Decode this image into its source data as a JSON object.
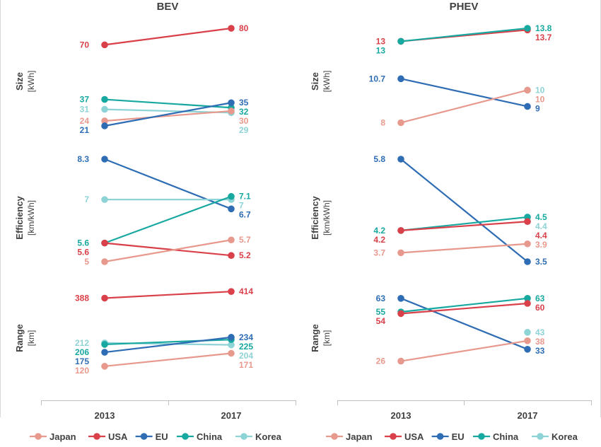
{
  "colors": {
    "Japan": "#e8998d",
    "USA": "#d94049",
    "EU": "#2e6db4",
    "China": "#17a8a0",
    "Korea": "#8ed3d6"
  },
  "legend": [
    "Japan",
    "USA",
    "EU",
    "China",
    "Korea"
  ],
  "chart_data": [
    {
      "type": "line",
      "title": "BEV",
      "categories": [
        "2013",
        "2017"
      ],
      "groups": [
        {
          "metric": "Size",
          "unit": "[kWh]",
          "series": [
            {
              "name": "USA",
              "values": [
                70,
                80
              ],
              "labels": [
                "70",
                "80"
              ]
            },
            {
              "name": "China",
              "values": [
                37,
                32
              ],
              "labels": [
                "37",
                "32"
              ]
            },
            {
              "name": "Korea",
              "values": [
                31,
                29
              ],
              "labels": [
                "31",
                "29"
              ]
            },
            {
              "name": "Japan",
              "values": [
                24,
                30
              ],
              "labels": [
                "24",
                "30"
              ]
            },
            {
              "name": "EU",
              "values": [
                21,
                35
              ],
              "labels": [
                "21",
                "35"
              ]
            }
          ]
        },
        {
          "metric": "Efficiency",
          "unit": "[km/kWh]",
          "series": [
            {
              "name": "EU",
              "values": [
                8.3,
                6.7
              ],
              "labels": [
                "8.3",
                "6.7"
              ]
            },
            {
              "name": "Korea",
              "values": [
                7,
                7
              ],
              "labels": [
                "7",
                "7"
              ]
            },
            {
              "name": "China",
              "values": [
                5.6,
                7.1
              ],
              "labels": [
                "5.6",
                "7.1"
              ]
            },
            {
              "name": "USA",
              "values": [
                5.6,
                5.2
              ],
              "labels": [
                "5.6",
                "5.2"
              ]
            },
            {
              "name": "Japan",
              "values": [
                5,
                5.7
              ],
              "labels": [
                "5",
                "5.7"
              ]
            }
          ]
        },
        {
          "metric": "Range",
          "unit": "[km]",
          "series": [
            {
              "name": "USA",
              "values": [
                388,
                414
              ],
              "labels": [
                "388",
                "414"
              ]
            },
            {
              "name": "Korea",
              "values": [
                212,
                204
              ],
              "labels": [
                "212",
                "204"
              ]
            },
            {
              "name": "China",
              "values": [
                206,
                225
              ],
              "labels": [
                "206",
                "225"
              ]
            },
            {
              "name": "EU",
              "values": [
                175,
                234
              ],
              "labels": [
                "175",
                "234"
              ]
            },
            {
              "name": "Japan",
              "values": [
                120,
                171
              ],
              "labels": [
                "120",
                "171"
              ]
            }
          ]
        }
      ]
    },
    {
      "type": "line",
      "title": "PHEV",
      "categories": [
        "2013",
        "2017"
      ],
      "groups": [
        {
          "metric": "Size",
          "unit": "[kWh]",
          "series": [
            {
              "name": "USA",
              "values": [
                13,
                13.7
              ],
              "labels": [
                "13",
                "13.7"
              ]
            },
            {
              "name": "China",
              "values": [
                13,
                13.8
              ],
              "labels": [
                "13",
                "13.8"
              ]
            },
            {
              "name": "EU",
              "values": [
                10.7,
                9
              ],
              "labels": [
                "10.7",
                "9"
              ]
            },
            {
              "name": "Korea",
              "values": [
                null,
                10
              ],
              "labels": [
                "",
                "10"
              ]
            },
            {
              "name": "Japan",
              "values": [
                8,
                10
              ],
              "labels": [
                "8",
                "10"
              ]
            }
          ]
        },
        {
          "metric": "Efficiency",
          "unit": "[km/kWh]",
          "series": [
            {
              "name": "EU",
              "values": [
                5.8,
                3.5
              ],
              "labels": [
                "5.8",
                "3.5"
              ]
            },
            {
              "name": "Korea",
              "values": [
                null,
                4.4
              ],
              "labels": [
                "",
                "4.4"
              ]
            },
            {
              "name": "China",
              "values": [
                4.2,
                4.5
              ],
              "labels": [
                "4.2",
                "4.5"
              ]
            },
            {
              "name": "USA",
              "values": [
                4.2,
                4.4
              ],
              "labels": [
                "4.2",
                "4.4"
              ]
            },
            {
              "name": "Japan",
              "values": [
                3.7,
                3.9
              ],
              "labels": [
                "3.7",
                "3.9"
              ]
            }
          ]
        },
        {
          "metric": "Range",
          "unit": "[km]",
          "series": [
            {
              "name": "EU",
              "values": [
                63,
                33
              ],
              "labels": [
                "63",
                "33"
              ]
            },
            {
              "name": "China",
              "values": [
                55,
                63
              ],
              "labels": [
                "55",
                "63"
              ]
            },
            {
              "name": "USA",
              "values": [
                54,
                60
              ],
              "labels": [
                "54",
                "60"
              ]
            },
            {
              "name": "Korea",
              "values": [
                null,
                43
              ],
              "labels": [
                "",
                "43"
              ]
            },
            {
              "name": "Japan",
              "values": [
                26,
                38
              ],
              "labels": [
                "26",
                "38"
              ]
            }
          ]
        }
      ]
    }
  ]
}
